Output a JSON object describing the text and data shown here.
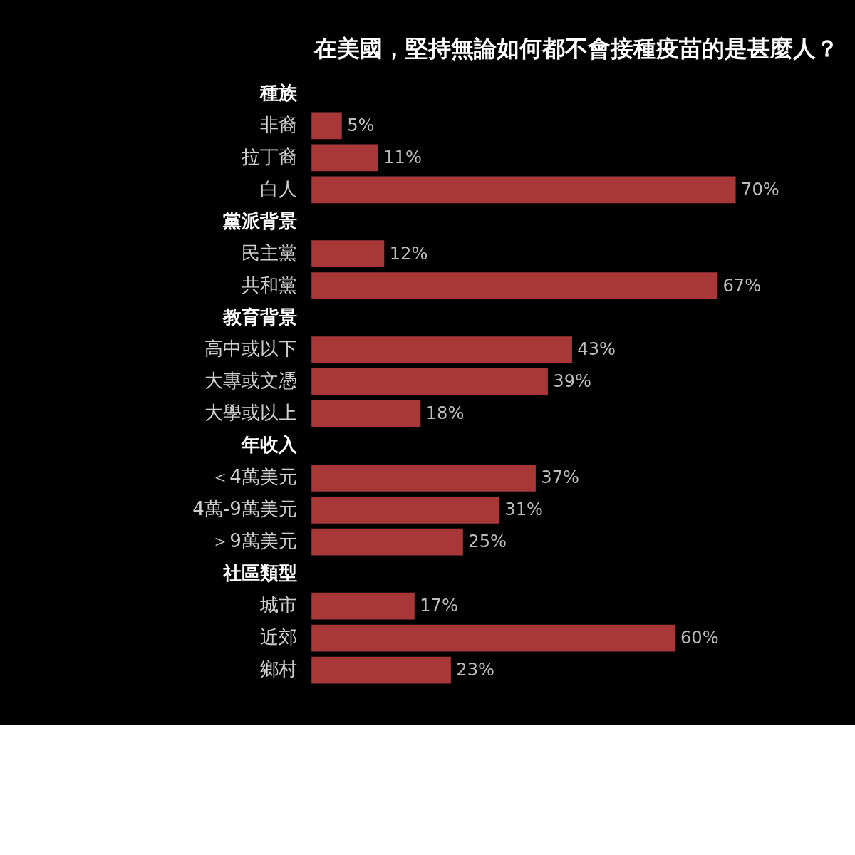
{
  "chart_data": {
    "type": "bar",
    "orientation": "horizontal",
    "title": "在美國，堅持無論如何都不會接種疫苗的是甚麼人？",
    "categories": [
      "種族",
      "非裔",
      "拉丁裔",
      "白人",
      "黨派背景",
      "民主黨",
      "共和黨",
      "教育背景",
      "高中或以下",
      "大專或文憑",
      "大學或以上",
      "年收入",
      "＜4萬美元",
      "4萬-9萬美元",
      "＞9萬美元",
      "社區類型",
      "城市",
      "近郊",
      "鄉村"
    ],
    "values": [
      null,
      5,
      11,
      70,
      null,
      12,
      67,
      null,
      43,
      39,
      18,
      null,
      37,
      31,
      25,
      null,
      17,
      60,
      23
    ],
    "value_labels": [
      null,
      "5%",
      "11%",
      "70%",
      null,
      "12%",
      "67%",
      null,
      "43%",
      "39%",
      "18%",
      null,
      "37%",
      "31%",
      "25%",
      null,
      "17%",
      "60%",
      "23%"
    ],
    "color": "#a83838"
  }
}
